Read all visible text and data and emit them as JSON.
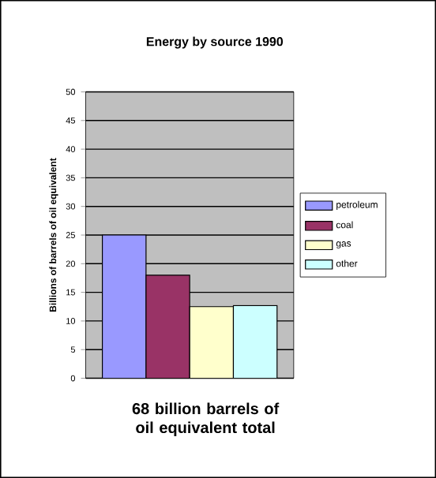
{
  "chart_data": {
    "type": "bar",
    "title": "Energy by source 1990",
    "ylabel": "Billions of barrels of oil equivalent",
    "categories": [
      null
    ],
    "series": [
      {
        "name": "petroleum",
        "color": "#9999ff",
        "values": [
          25
        ]
      },
      {
        "name": "coal",
        "color": "#993366",
        "values": [
          18
        ]
      },
      {
        "name": "gas",
        "color": "#ffffcc",
        "values": [
          12.5
        ]
      },
      {
        "name": "other",
        "color": "#ccffff",
        "values": [
          12.7
        ]
      }
    ],
    "ylim": [
      0,
      50
    ],
    "yticks": [
      0,
      5,
      10,
      15,
      20,
      25,
      30,
      35,
      40,
      45,
      50
    ],
    "grid": "y",
    "legend": "right",
    "tick_labels": "y",
    "annotations": [
      "68 billion barrels of oil equivalent total"
    ]
  }
}
